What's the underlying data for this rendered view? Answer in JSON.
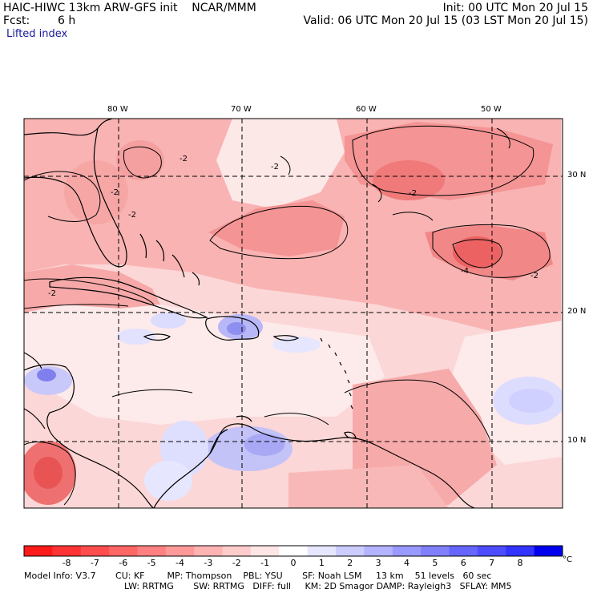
{
  "header": {
    "model_line": "HAIC-HIWC 13km ARW-GFS init    NCAR/MMM",
    "fcst_label": "Fcst:",
    "fcst_value": "6 h",
    "field_name": "Lifted index",
    "init_line": "Init: 00 UTC Mon 20 Jul 15",
    "valid_line": "Valid: 06 UTC Mon 20 Jul 15 (03 LST Mon 20 Jul 15)"
  },
  "map": {
    "lon_labels": [
      "80 W",
      "70 W",
      "60 W",
      "50 W"
    ],
    "lat_labels": [
      "30 N",
      "20 N",
      "10 N"
    ],
    "contour_labels": [
      "-2",
      "-2",
      "-2",
      "-2",
      "-2",
      "-4",
      "-2",
      "-2"
    ],
    "colors": {
      "neg_strong": "#ee3333",
      "neg_mid": "#f58080",
      "neg_weak": "#fbbfbf",
      "neg_faint": "#fde4e4",
      "pos_weak": "#dcdcff",
      "pos_mid": "#b8b8f8",
      "pos_strong": "#7777ee"
    }
  },
  "colorbar": {
    "unit": "°C",
    "tick_labels": [
      "-8",
      "-7",
      "-6",
      "-5",
      "-4",
      "-3",
      "-2",
      "-1",
      "0",
      "1",
      "2",
      "3",
      "4",
      "5",
      "6",
      "7",
      "8"
    ],
    "colors": [
      "#ff1a1a",
      "#ff3333",
      "#ff4d4d",
      "#ff6666",
      "#ff8080",
      "#ff9999",
      "#ffb3b3",
      "#ffcccc",
      "#ffe6e6",
      "#ffffff",
      "#e6e6ff",
      "#ccccff",
      "#b3b3ff",
      "#9999ff",
      "#8080ff",
      "#6666ff",
      "#4d4dff",
      "#3333ff",
      "#0000ee"
    ]
  },
  "footer": {
    "line1": "Model Info: V3.7       CU: KF        MP: Thompson    PBL: YSU       SF: Noah LSM     13 km    51 levels   60 sec",
    "line2": "LW: RRTMG       SW: RRTMG   DIFF: full     KM: 2D Smagor DAMP: Rayleigh3   SFLAY: MM5"
  }
}
